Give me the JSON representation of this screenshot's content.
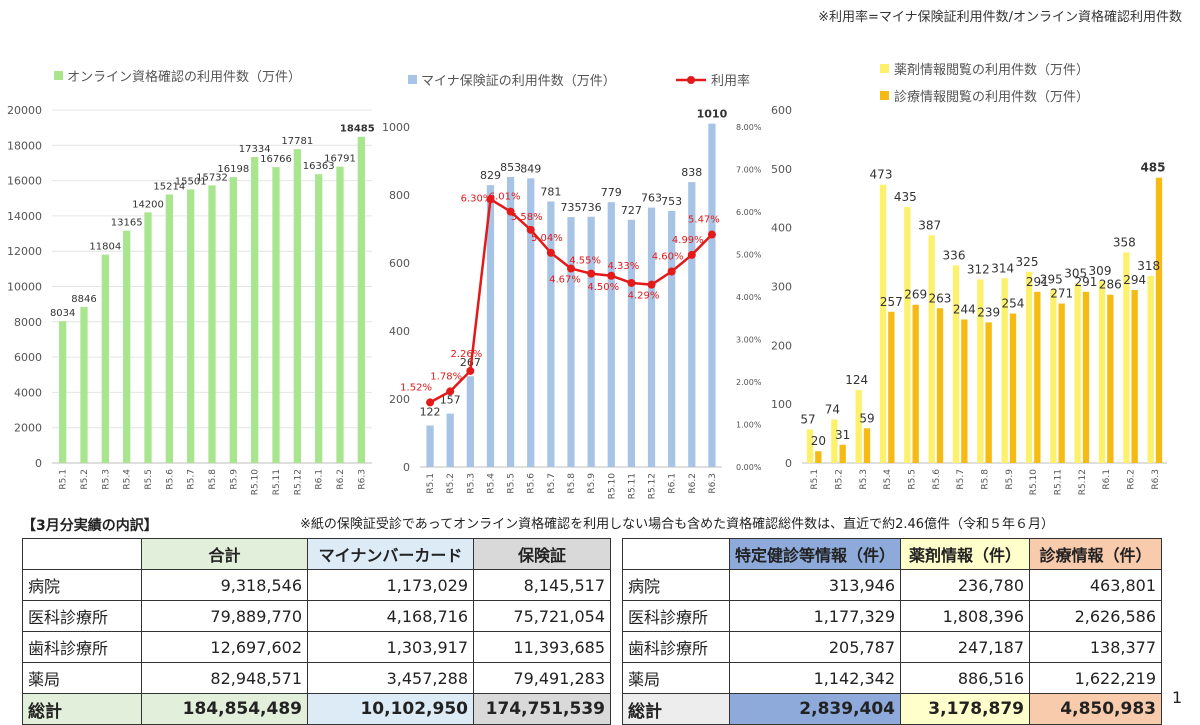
{
  "page": {
    "top_note": "※利用率=マイナ保険証利用件数/オンライン資格確認利用件数",
    "section_title": "【3月分実績の内訳】",
    "mid_note": "※紙の保険証受診であってオンライン資格確認を利用しない場合も含めた資格確認総件数は、直近で約2.46億件（令和５年６月）",
    "page_number": "1"
  },
  "chart_data": [
    {
      "type": "bar",
      "categories": [
        "R5.1",
        "R5.2",
        "R5.3",
        "R5.4",
        "R5.5",
        "R5.6",
        "R5.7",
        "R5.8",
        "R5.9",
        "R5.10",
        "R5.11",
        "R5.12",
        "R6.1",
        "R6.2",
        "R6.3"
      ],
      "series": [
        {
          "name": "オンライン資格確認の利用件数（万件）",
          "values": [
            8034,
            8846,
            11804,
            13165,
            14200,
            15214,
            15501,
            15732,
            16198,
            17334,
            16766,
            17781,
            16363,
            16791,
            18485
          ],
          "color": "#a9e48f"
        }
      ],
      "ylim": [
        0,
        20000
      ],
      "yticks": [
        0,
        2000,
        4000,
        6000,
        8000,
        10000,
        12000,
        14000,
        16000,
        18000,
        20000
      ],
      "legend": "top"
    },
    {
      "type": "bar+line",
      "categories": [
        "R5.1",
        "R5.2",
        "R5.3",
        "R5.4",
        "R5.5",
        "R5.6",
        "R5.7",
        "R5.8",
        "R5.9",
        "R5.10",
        "R5.11",
        "R5.12",
        "R6.1",
        "R6.2",
        "R6.3"
      ],
      "series": [
        {
          "name": "マイナ保険証の利用件数（万件）",
          "values": [
            122,
            157,
            267,
            829,
            853,
            849,
            781,
            735,
            736,
            779,
            727,
            763,
            753,
            838,
            1010
          ],
          "color": "#a7c4e6",
          "axis": "left"
        },
        {
          "name": "利用率",
          "values": [
            1.52,
            1.78,
            2.26,
            6.3,
            6.01,
            5.58,
            5.04,
            4.67,
            4.55,
            4.5,
            4.33,
            4.29,
            4.6,
            4.99,
            5.47
          ],
          "labels": [
            "1.52%",
            "1.78%",
            "2.26%",
            "6.30%",
            "6.01%",
            "5.58%",
            "5.04%",
            "4.67%",
            "4.55%",
            "4.50%",
            "4.33%",
            "4.29%",
            "4.60%",
            "4.99%",
            "5.47%"
          ],
          "color": "#e21a1a",
          "axis": "right"
        }
      ],
      "ylim": [
        0,
        1000
      ],
      "yticks": [
        0,
        200,
        400,
        600,
        800,
        1000
      ],
      "y2lim": [
        0,
        8
      ],
      "y2ticks": [
        "0.00%",
        "1.00%",
        "2.00%",
        "3.00%",
        "4.00%",
        "5.00%",
        "6.00%",
        "7.00%",
        "8.00%"
      ],
      "legend": "top"
    },
    {
      "type": "bar",
      "categories": [
        "R5.1",
        "R5.2",
        "R5.3",
        "R5.4",
        "R5.5",
        "R5.6",
        "R5.7",
        "R5.8",
        "R5.9",
        "R5.10",
        "R5.11",
        "R5.12",
        "R6.1",
        "R6.2",
        "R6.3"
      ],
      "series": [
        {
          "name": "薬剤情報閲覧の利用件数（万件）",
          "values": [
            57,
            74,
            124,
            473,
            435,
            387,
            336,
            312,
            314,
            325,
            295,
            305,
            309,
            358,
            318
          ],
          "color": "#fdf16c"
        },
        {
          "name": "診療情報閲覧の利用件数（万件）",
          "values": [
            20,
            31,
            59,
            257,
            269,
            263,
            244,
            239,
            254,
            291,
            271,
            291,
            286,
            294,
            485
          ],
          "color": "#f6bb12"
        }
      ],
      "ylim": [
        0,
        600
      ],
      "yticks": [
        0,
        100,
        200,
        300,
        400,
        500,
        600
      ],
      "legend": "top-right"
    }
  ],
  "table_left": {
    "headers": [
      "",
      "合計",
      "マイナンバーカード",
      "保険証"
    ],
    "rows": [
      {
        "label": "病院",
        "values": [
          "9,318,546",
          "1,173,029",
          "8,145,517"
        ]
      },
      {
        "label": "医科診療所",
        "values": [
          "79,889,770",
          "4,168,716",
          "75,721,054"
        ]
      },
      {
        "label": "歯科診療所",
        "values": [
          "12,697,602",
          "1,303,917",
          "11,393,685"
        ]
      },
      {
        "label": "薬局",
        "values": [
          "82,948,571",
          "3,457,288",
          "79,491,283"
        ]
      }
    ],
    "total": {
      "label": "総計",
      "values": [
        "184,854,489",
        "10,102,950",
        "174,751,539"
      ]
    }
  },
  "table_right": {
    "headers": [
      "",
      "特定健診等情報（件）",
      "薬剤情報（件）",
      "診療情報（件）"
    ],
    "rows": [
      {
        "label": "病院",
        "values": [
          "313,946",
          "236,780",
          "463,801"
        ]
      },
      {
        "label": "医科診療所",
        "values": [
          "1,177,329",
          "1,808,396",
          "2,626,586"
        ]
      },
      {
        "label": "歯科診療所",
        "values": [
          "205,787",
          "247,187",
          "138,377"
        ]
      },
      {
        "label": "薬局",
        "values": [
          "1,142,342",
          "886,516",
          "1,622,219"
        ]
      }
    ],
    "total": {
      "label": "総計",
      "values": [
        "2,839,404",
        "3,178,879",
        "4,850,983"
      ]
    }
  },
  "colors": {
    "left_total_col": "#e2efda",
    "left_card_col": "#ddebf7",
    "left_ins_col": "#d9d9d9",
    "right_tokutei_hdr": "#8eaadb",
    "right_yakuzai_hdr": "#ffffcc",
    "right_shinryo_hdr": "#f8cbad",
    "right_total_label": "#ededed"
  }
}
